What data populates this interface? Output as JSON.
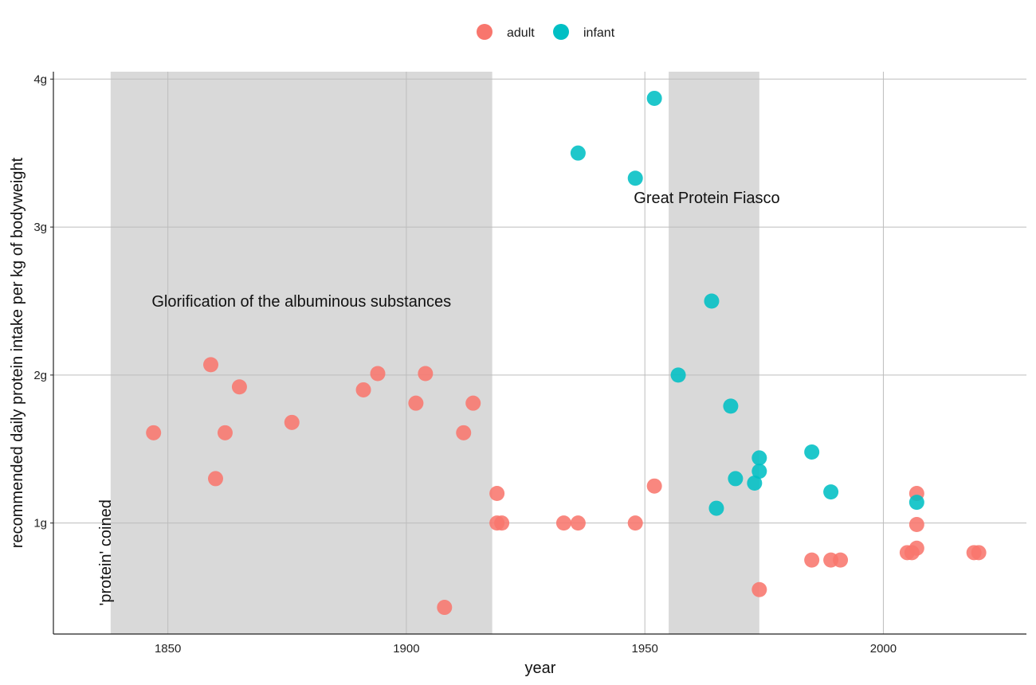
{
  "chart_data": {
    "type": "scatter",
    "xlabel": "year",
    "ylabel": "recommended daily protein intake per kg of bodyweight",
    "xlim": [
      1826,
      2030
    ],
    "ylim": [
      0.25,
      4.05
    ],
    "x_ticks": [
      1850,
      1900,
      1950,
      2000
    ],
    "y_ticks": [
      {
        "value": 1,
        "label": "1g"
      },
      {
        "value": 2,
        "label": "2g"
      },
      {
        "value": 3,
        "label": "3g"
      },
      {
        "value": 4,
        "label": "4g"
      }
    ],
    "grid": true,
    "legend_position": "top",
    "legend": [
      {
        "name": "adult",
        "color": "#F8766D"
      },
      {
        "name": "infant",
        "color": "#00BFC4"
      }
    ],
    "shaded_periods": [
      {
        "x_start": 1838,
        "x_end": 1918
      },
      {
        "x_start": 1955,
        "x_end": 1974
      }
    ],
    "annotations": [
      {
        "text": "Glorification of the albuminous substances",
        "x": 1878,
        "y": 2.5,
        "rotated": false
      },
      {
        "text": "Great Protein Fiasco",
        "x": 1963,
        "y": 3.2,
        "rotated": false
      },
      {
        "text": "'protein' coined",
        "x": 1838,
        "y": 0.8,
        "rotated": true
      }
    ],
    "series": [
      {
        "name": "adult",
        "color": "#F8766D",
        "points": [
          [
            1847,
            1.61
          ],
          [
            1859,
            2.07
          ],
          [
            1860,
            1.3
          ],
          [
            1862,
            1.61
          ],
          [
            1865,
            1.92
          ],
          [
            1876,
            1.68
          ],
          [
            1891,
            1.9
          ],
          [
            1894,
            2.01
          ],
          [
            1902,
            1.81
          ],
          [
            1904,
            2.01
          ],
          [
            1908,
            0.43
          ],
          [
            1912,
            1.61
          ],
          [
            1914,
            1.81
          ],
          [
            1919,
            1.2
          ],
          [
            1919,
            1.0
          ],
          [
            1920,
            1.0
          ],
          [
            1933,
            1.0
          ],
          [
            1936,
            1.0
          ],
          [
            1948,
            1.0
          ],
          [
            1952,
            1.25
          ],
          [
            1974,
            0.55
          ],
          [
            1985,
            0.75
          ],
          [
            1989,
            0.75
          ],
          [
            1991,
            0.75
          ],
          [
            2005,
            0.8
          ],
          [
            2006,
            0.8
          ],
          [
            2007,
            0.83
          ],
          [
            2007,
            0.99
          ],
          [
            2007,
            1.2
          ],
          [
            2019,
            0.8
          ],
          [
            2020,
            0.8
          ]
        ]
      },
      {
        "name": "infant",
        "color": "#00BFC4",
        "points": [
          [
            1936,
            3.5
          ],
          [
            1948,
            3.33
          ],
          [
            1952,
            3.87
          ],
          [
            1957,
            2.0
          ],
          [
            1964,
            2.5
          ],
          [
            1965,
            1.1
          ],
          [
            1968,
            1.79
          ],
          [
            1969,
            1.3
          ],
          [
            1973,
            1.27
          ],
          [
            1974,
            1.35
          ],
          [
            1974,
            1.44
          ],
          [
            1985,
            1.48
          ],
          [
            1989,
            1.21
          ],
          [
            2007,
            1.14
          ]
        ]
      }
    ]
  }
}
